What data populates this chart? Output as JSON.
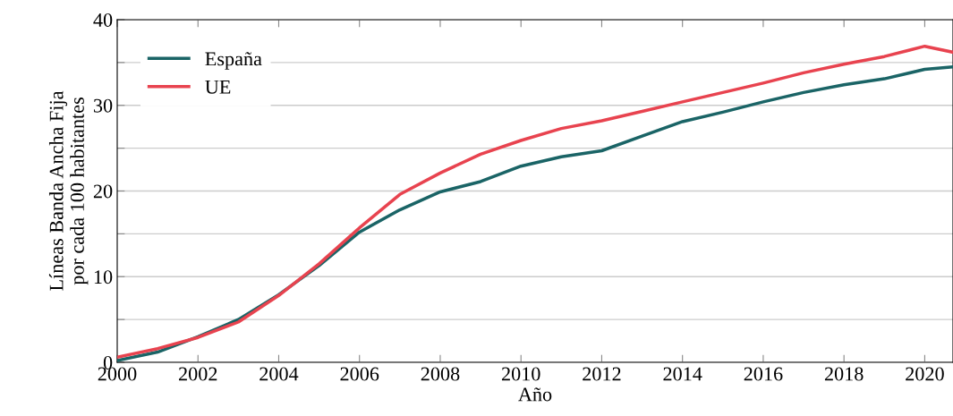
{
  "chart_data": {
    "type": "line",
    "xlabel": "Año",
    "ylabel": "Líneas Banda Ancha Fija\npor cada 100 habitantes",
    "x": [
      2000,
      2001,
      2002,
      2003,
      2004,
      2005,
      2006,
      2007,
      2008,
      2009,
      2010,
      2011,
      2012,
      2013,
      2014,
      2015,
      2016,
      2017,
      2018,
      2019,
      2020,
      2020.7
    ],
    "series": [
      {
        "name": "España",
        "color": "#1a6466",
        "values": [
          0.2,
          1.2,
          3.0,
          5.0,
          7.9,
          11.3,
          15.2,
          17.8,
          19.9,
          21.1,
          22.9,
          24.0,
          24.7,
          26.4,
          28.1,
          29.2,
          30.4,
          31.5,
          32.4,
          33.1,
          34.2,
          34.5
        ]
      },
      {
        "name": "UE",
        "color": "#e8434f",
        "values": [
          0.6,
          1.6,
          2.9,
          4.7,
          7.8,
          11.5,
          15.7,
          19.6,
          22.1,
          24.3,
          25.9,
          27.3,
          28.2,
          29.3,
          30.4,
          31.5,
          32.6,
          33.8,
          34.8,
          35.7,
          36.9,
          36.2
        ]
      }
    ],
    "xlim": [
      2000,
      2020.7
    ],
    "xticks": [
      2000,
      2002,
      2004,
      2006,
      2008,
      2010,
      2012,
      2014,
      2016,
      2018,
      2020
    ],
    "ylim": [
      0,
      40
    ],
    "yticks": [
      0,
      {
        "value": 5,
        "label": null
      },
      10,
      {
        "value": 15,
        "label": null
      },
      20,
      {
        "value": 25,
        "label": null
      },
      30,
      {
        "value": 35,
        "label": null
      },
      40
    ],
    "grid": "y",
    "legend": "top left",
    "line_style": "solid",
    "marker": "none"
  }
}
